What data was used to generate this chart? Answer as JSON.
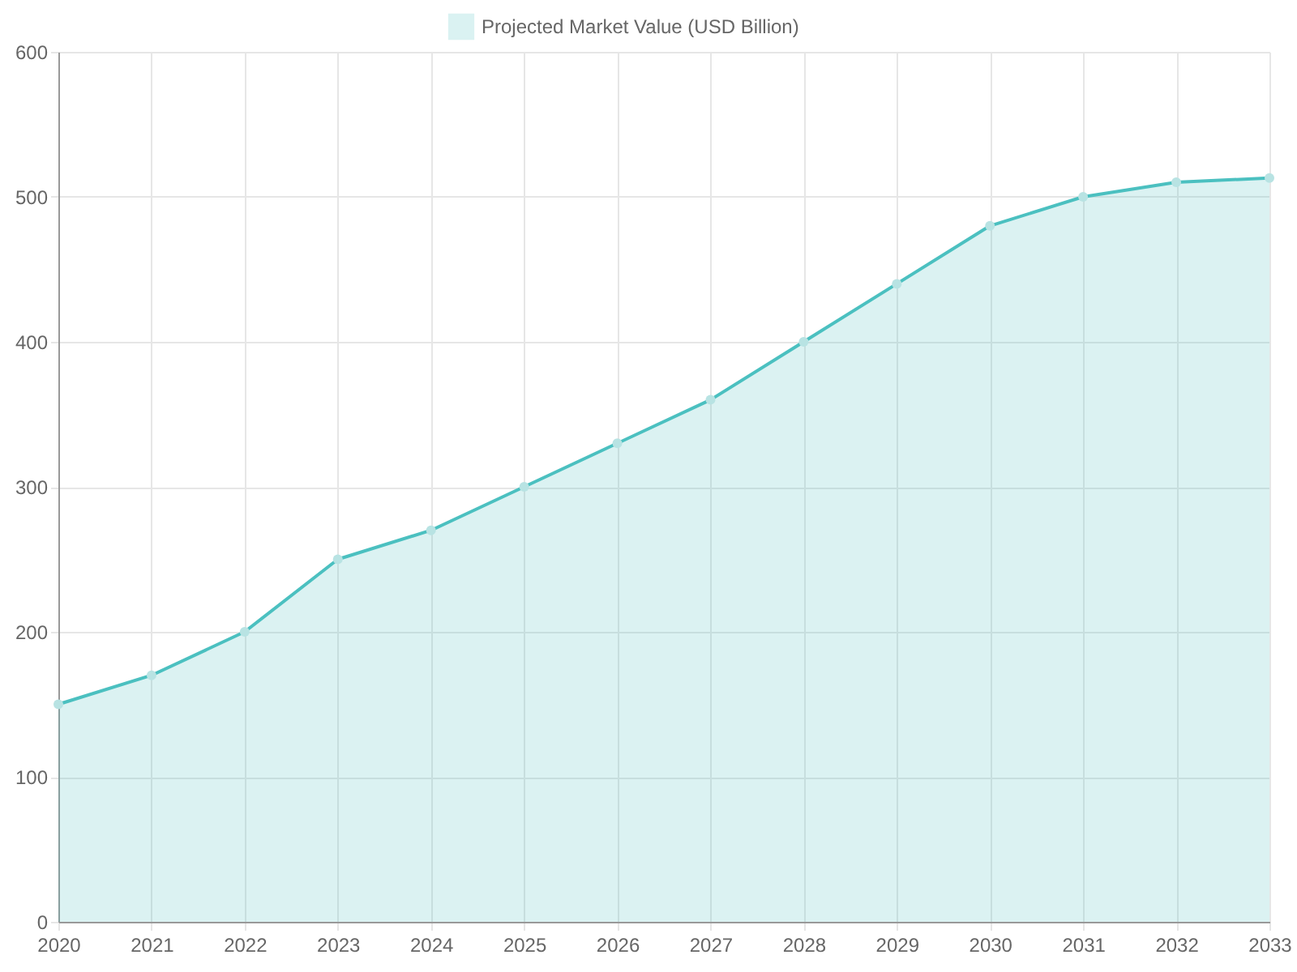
{
  "chart_data": {
    "type": "area",
    "categories": [
      "2020",
      "2021",
      "2022",
      "2023",
      "2024",
      "2025",
      "2026",
      "2027",
      "2028",
      "2029",
      "2030",
      "2031",
      "2032",
      "2033"
    ],
    "series": [
      {
        "name": "Projected Market Value (USD Billion)",
        "color": "#4bc0c0",
        "values": [
          150,
          170,
          200,
          250,
          270,
          300,
          330,
          360,
          400,
          440,
          480,
          500,
          510,
          513
        ]
      }
    ],
    "ylim": [
      0,
      600
    ],
    "yticks": [
      0,
      100,
      200,
      300,
      400,
      500,
      600
    ],
    "grid": true,
    "legend": "top",
    "marker": "circle",
    "line_style": "solid"
  }
}
